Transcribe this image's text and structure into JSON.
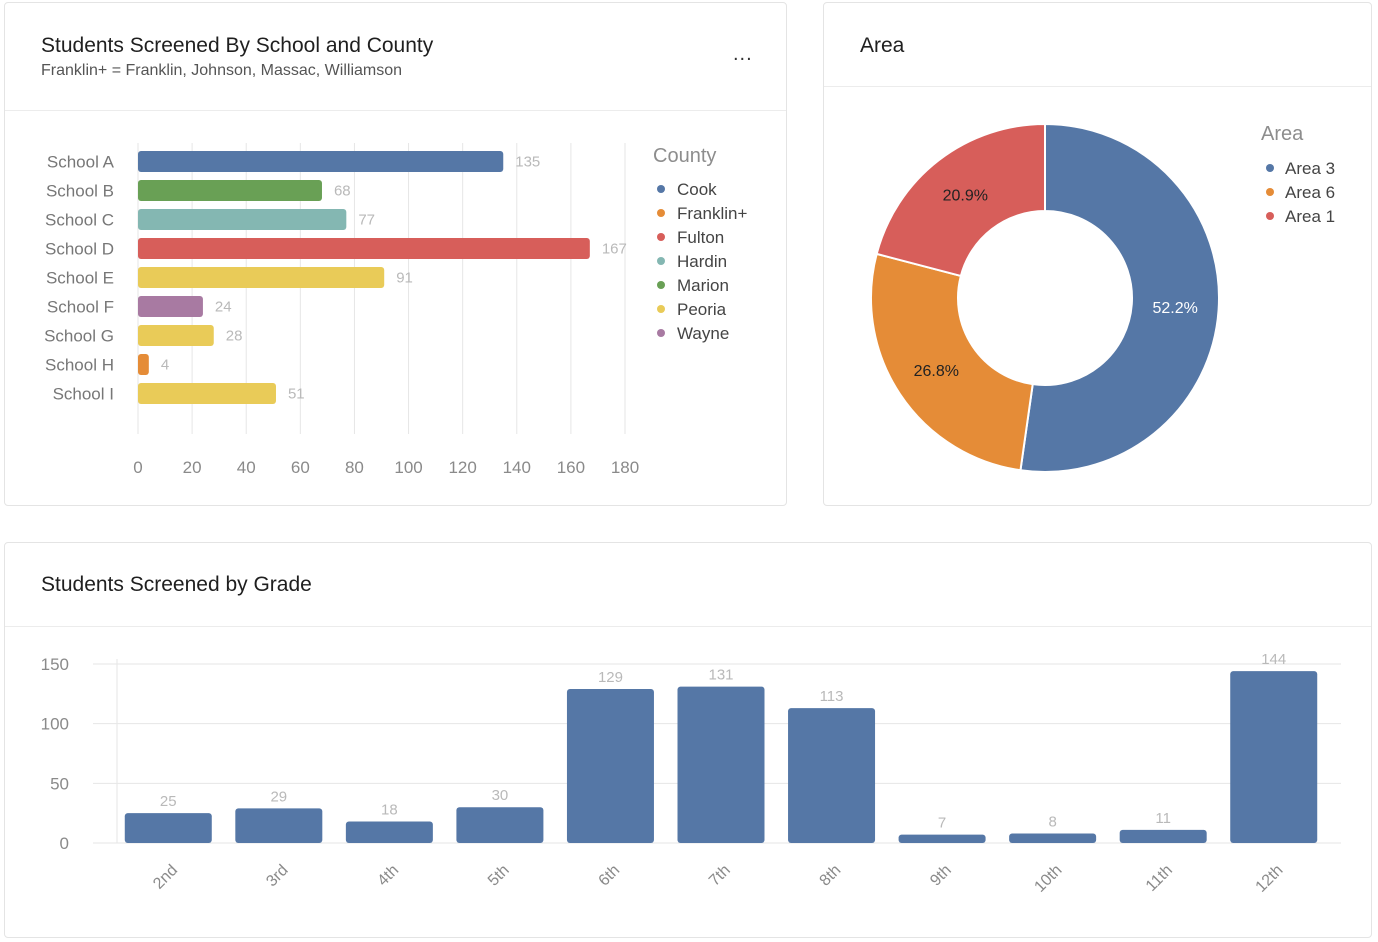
{
  "colors": {
    "blue": "#5577a6",
    "orange": "#e58c37",
    "red": "#d75e5a",
    "teal": "#84b7b2",
    "green": "#69a055",
    "yellow": "#e9cb58",
    "purple": "#a87aa2",
    "axis_text": "#8a8a8a",
    "label_text": "#b9b9b9",
    "grid": "#e6e6e6"
  },
  "school_panel": {
    "title": "Students Screened By School and County",
    "subtitle": "Franklin+ = Franklin, Johnson, Massac, Williamson",
    "menu_label": "..."
  },
  "area_panel": {
    "title": "Area"
  },
  "grade_panel": {
    "title": "Students Screened by Grade"
  },
  "chart_data": [
    {
      "id": "school",
      "type": "bar",
      "orientation": "horizontal",
      "title": "Students Screened By School and County",
      "categories": [
        "School A",
        "School B",
        "School C",
        "School D",
        "School E",
        "School F",
        "School G",
        "School H",
        "School I"
      ],
      "values": [
        135,
        68,
        77,
        167,
        91,
        24,
        28,
        4,
        51
      ],
      "series_colors": [
        "Cook",
        "Marion",
        "Hardin",
        "Fulton",
        "Peoria",
        "Wayne",
        "Peoria",
        "Franklin+",
        "Peoria"
      ],
      "xlim": [
        0,
        180
      ],
      "xticks": [
        0,
        20,
        40,
        60,
        80,
        100,
        120,
        140,
        160,
        180
      ],
      "grid": true,
      "legend": {
        "title": "County",
        "placement": "right",
        "items": [
          {
            "name": "Cook",
            "color": "#5577a6"
          },
          {
            "name": "Franklin+",
            "color": "#e58c37"
          },
          {
            "name": "Fulton",
            "color": "#d75e5a"
          },
          {
            "name": "Hardin",
            "color": "#84b7b2"
          },
          {
            "name": "Marion",
            "color": "#69a055"
          },
          {
            "name": "Peoria",
            "color": "#e9cb58"
          },
          {
            "name": "Wayne",
            "color": "#a87aa2"
          }
        ]
      }
    },
    {
      "id": "area",
      "type": "pie",
      "donut": true,
      "title": "Area",
      "slices": [
        {
          "name": "Area 3",
          "value": 52.2,
          "label": "52.2%",
          "color": "#5577a6"
        },
        {
          "name": "Area 6",
          "value": 26.8,
          "label": "26.8%",
          "color": "#e58c37"
        },
        {
          "name": "Area 1",
          "value": 20.9,
          "label": "20.9%",
          "color": "#d75e5a"
        }
      ],
      "legend": {
        "title": "Area",
        "placement": "right"
      }
    },
    {
      "id": "grade",
      "type": "bar",
      "orientation": "vertical",
      "title": "Students Screened by Grade",
      "categories": [
        "2nd",
        "3rd",
        "4th",
        "5th",
        "6th",
        "7th",
        "8th",
        "9th",
        "10th",
        "11th",
        "12th"
      ],
      "values": [
        25,
        29,
        18,
        30,
        129,
        131,
        113,
        7,
        8,
        11,
        144
      ],
      "ylim": [
        0,
        160
      ],
      "yticks": [
        0,
        50,
        100,
        150
      ],
      "grid": true,
      "color": "#5577a6"
    }
  ]
}
